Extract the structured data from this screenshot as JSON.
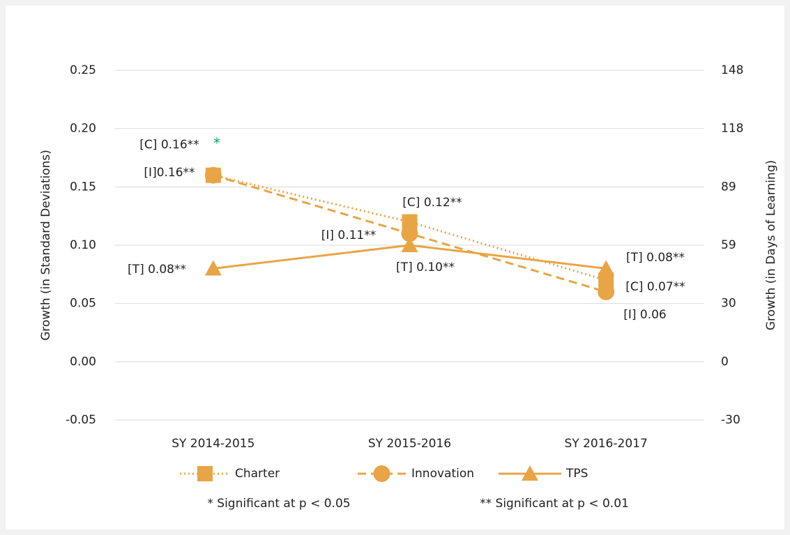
{
  "chart_data": {
    "type": "line",
    "categories": [
      "SY 2014-2015",
      "SY 2015-2016",
      "SY 2016-2017"
    ],
    "ylabel": "Growth (in Standard Deviations)",
    "y2label": "Growth (in Days of Learning)",
    "ylim": [
      -0.05,
      0.25
    ],
    "yticks": [
      -0.05,
      {
        "value": 0,
        "label": "0.00"
      },
      0.05,
      {
        "value": 0.1,
        "label": "0.10"
      },
      0.15,
      {
        "value": 0.2,
        "label": "0.20"
      },
      0.25
    ],
    "y2lim": [
      -29.6,
      148
    ],
    "y2ticks": [
      {
        "value": -29.6,
        "label": "-30"
      },
      0,
      {
        "value": 29.6,
        "label": "30"
      },
      {
        "value": 59.2,
        "label": "59"
      },
      {
        "value": 88.8,
        "label": "89"
      },
      {
        "value": 118.4,
        "label": "118"
      },
      148
    ],
    "grid": true,
    "series": [
      {
        "name": "Charter",
        "color": "#e8a445",
        "dash": "dotted",
        "marker": "square",
        "values": [
          0.16,
          0.12,
          0.07
        ],
        "value_labels": [
          "[C] 0.16**",
          "[C] 0.12**",
          "[C] 0.07**"
        ]
      },
      {
        "name": "Innovation",
        "color": "#e8a445",
        "dash": "dashed",
        "marker": "circle",
        "values": [
          0.16,
          0.11,
          0.06
        ],
        "value_labels": [
          "[I]0.16**",
          "[I] 0.11**",
          "[I] 0.06"
        ]
      },
      {
        "name": "TPS",
        "color": "#e8a445",
        "dash": "solid",
        "marker": "triangle",
        "values": [
          0.08,
          0.1,
          0.08
        ],
        "value_labels": [
          "[T] 0.08**",
          "[T] 0.10**",
          "[T] 0.08**"
        ]
      }
    ],
    "annotation": {
      "text": "*",
      "color": "#00b050"
    },
    "footnotes": [
      "* Significant at p < 0.05",
      "** Significant at p < 0.01"
    ]
  }
}
